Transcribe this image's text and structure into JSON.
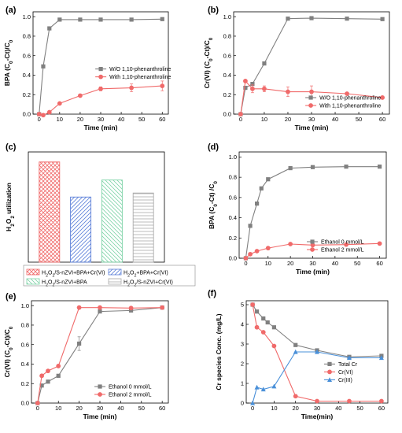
{
  "chart_data": [
    {
      "panel": "(a)",
      "type": "line",
      "xlabel": "Time (min)",
      "ylabel": "BPA (C0-Ct)/C0",
      "xlim": [
        0,
        60
      ],
      "ylim": [
        0,
        1.05
      ],
      "xticks": [
        0,
        10,
        20,
        30,
        40,
        50,
        60
      ],
      "yticks": [
        0.0,
        0.2,
        0.4,
        0.6,
        0.8,
        1.0
      ],
      "ytick_decimals": 1,
      "legend_position": "center-right",
      "series": [
        {
          "name": "W/O 1,10-phenanthroline",
          "color": "#808080",
          "marker": "square",
          "x": [
            0,
            2,
            5,
            10,
            20,
            30,
            45,
            60
          ],
          "y": [
            0.0,
            0.49,
            0.88,
            0.97,
            0.97,
            0.97,
            0.97,
            0.975
          ]
        },
        {
          "name": "With 1,10-phenanthroline",
          "color": "#f06a6a",
          "marker": "circle",
          "x": [
            0,
            2,
            5,
            10,
            20,
            30,
            45,
            60
          ],
          "y": [
            0.0,
            -0.01,
            0.02,
            0.11,
            0.19,
            0.26,
            0.27,
            0.29
          ],
          "err": [
            0,
            0,
            0,
            0,
            0,
            0.02,
            0.04,
            0.05
          ]
        }
      ]
    },
    {
      "panel": "(b)",
      "type": "line",
      "xlabel": "Time (min)",
      "ylabel": "Cr(VI) (C0-Ct)/C0",
      "xlim": [
        0,
        60
      ],
      "ylim": [
        0,
        1.05
      ],
      "xticks": [
        0,
        10,
        20,
        30,
        40,
        50,
        60
      ],
      "yticks": [
        0.0,
        0.2,
        0.4,
        0.6,
        0.8,
        1.0
      ],
      "ytick_decimals": 1,
      "legend_position": "bottom-right",
      "series": [
        {
          "name": "W/O 1,10-phenanthroline",
          "color": "#808080",
          "marker": "square",
          "x": [
            0,
            2,
            5,
            10,
            20,
            30,
            45,
            60
          ],
          "y": [
            0.0,
            0.27,
            0.31,
            0.52,
            0.98,
            0.985,
            0.98,
            0.975
          ]
        },
        {
          "name": "With 1,10-phenanthroline",
          "color": "#f06a6a",
          "marker": "circle",
          "x": [
            0,
            2,
            5,
            10,
            20,
            30,
            45,
            60
          ],
          "y": [
            0.0,
            0.34,
            0.26,
            0.26,
            0.23,
            0.23,
            0.21,
            0.17
          ],
          "err": [
            0,
            0,
            0.04,
            0.03,
            0.05,
            0.06,
            0,
            0
          ]
        }
      ]
    },
    {
      "panel": "(c)",
      "type": "bar",
      "ylabel": "H2O2 utilization",
      "ylim": [
        0,
        1.1
      ],
      "categories": [
        "H2O2/S-nZVI+BPA+Cr(VI)",
        "H2O2+BPA+Cr(VI)",
        "H2O2/S-nZVI+BPA",
        "H2O2/S-nZVI+Cr(VI)"
      ],
      "values": [
        1.0,
        0.65,
        0.82,
        0.69
      ],
      "bar_colors": [
        "#f06a6a",
        "#5b7fd8",
        "#7fd3a8",
        "#aaaaaa"
      ],
      "bar_hatches": [
        "cross",
        "diag-right",
        "diag-left",
        "horizontal"
      ],
      "legend_position": "bottom"
    },
    {
      "panel": "(d)",
      "type": "line",
      "xlabel": "Time (min)",
      "ylabel": "BPA (C0-Ct) /C0",
      "xlim": [
        0,
        60
      ],
      "ylim": [
        0,
        1.05
      ],
      "xticks": [
        0,
        10,
        20,
        30,
        40,
        50,
        60
      ],
      "yticks": [
        0.0,
        0.2,
        0.4,
        0.6,
        0.8,
        1.0
      ],
      "ytick_decimals": 1,
      "legend_position": "bottom-right",
      "series": [
        {
          "name": "Ethanol  0 mmol/L",
          "color": "#808080",
          "marker": "square",
          "x": [
            0,
            2,
            5,
            7,
            10,
            20,
            30,
            45,
            60
          ],
          "y": [
            0.0,
            0.32,
            0.54,
            0.69,
            0.78,
            0.89,
            0.9,
            0.905,
            0.905
          ]
        },
        {
          "name": "Ethanol  2 mmol/L",
          "color": "#f06a6a",
          "marker": "circle",
          "x": [
            0,
            2,
            5,
            10,
            20,
            30,
            45,
            60
          ],
          "y": [
            0.0,
            0.04,
            0.07,
            0.1,
            0.14,
            0.13,
            0.135,
            0.145
          ]
        }
      ]
    },
    {
      "panel": "(e)",
      "type": "line",
      "xlabel": "Time (min)",
      "ylabel": "Cr(VI) (C0-Ct)/C0",
      "xlim": [
        0,
        60
      ],
      "ylim": [
        0,
        1.05
      ],
      "xticks": [
        0,
        10,
        20,
        30,
        40,
        50,
        60
      ],
      "yticks": [
        0.0,
        0.2,
        0.4,
        0.6,
        0.8,
        1.0
      ],
      "ytick_decimals": 1,
      "legend_position": "bottom-right",
      "series": [
        {
          "name": "Ethanol  0 mmol/L",
          "color": "#808080",
          "marker": "square",
          "x": [
            0,
            2,
            5,
            10,
            20,
            30,
            45,
            60
          ],
          "y": [
            0.0,
            0.18,
            0.22,
            0.28,
            0.61,
            0.94,
            0.95,
            0.98
          ],
          "err": [
            0,
            0,
            0,
            0,
            0.07,
            0,
            0,
            0
          ]
        },
        {
          "name": "Ethanol  2 mmol/L",
          "color": "#f06a6a",
          "marker": "circle",
          "x": [
            0,
            2,
            5,
            10,
            20,
            30,
            45,
            60
          ],
          "y": [
            0.0,
            0.28,
            0.33,
            0.38,
            0.98,
            0.98,
            0.975,
            0.98
          ]
        }
      ]
    },
    {
      "panel": "(f)",
      "type": "line",
      "xlabel": "Time(min)",
      "ylabel": "Cr species Conc. (mg/L)",
      "xlim": [
        0,
        60
      ],
      "ylim": [
        0,
        5.2
      ],
      "xticks": [
        0,
        10,
        20,
        30,
        40,
        50,
        60
      ],
      "yticks": [
        0,
        1,
        2,
        3,
        4,
        5
      ],
      "ytick_decimals": 0,
      "legend_position": "center-right",
      "series": [
        {
          "name": "Total Cr",
          "color": "#808080",
          "marker": "square",
          "x": [
            0,
            2,
            5,
            7,
            10,
            20,
            30,
            45,
            60
          ],
          "y": [
            5.0,
            4.65,
            4.3,
            4.1,
            3.85,
            2.95,
            2.68,
            2.35,
            2.4
          ]
        },
        {
          "name": "Cr(VI)",
          "color": "#f06a6a",
          "marker": "circle",
          "x": [
            0,
            2,
            5,
            10,
            20,
            30,
            45,
            60
          ],
          "y": [
            5.0,
            3.85,
            3.6,
            2.9,
            0.35,
            0.1,
            0.1,
            0.1
          ]
        },
        {
          "name": "Cr(III)",
          "color": "#4a90d9",
          "marker": "triangle",
          "x": [
            0,
            2,
            5,
            10,
            20,
            30,
            45,
            60
          ],
          "y": [
            0.0,
            0.8,
            0.7,
            0.85,
            2.6,
            2.6,
            2.3,
            2.3
          ]
        }
      ]
    }
  ]
}
